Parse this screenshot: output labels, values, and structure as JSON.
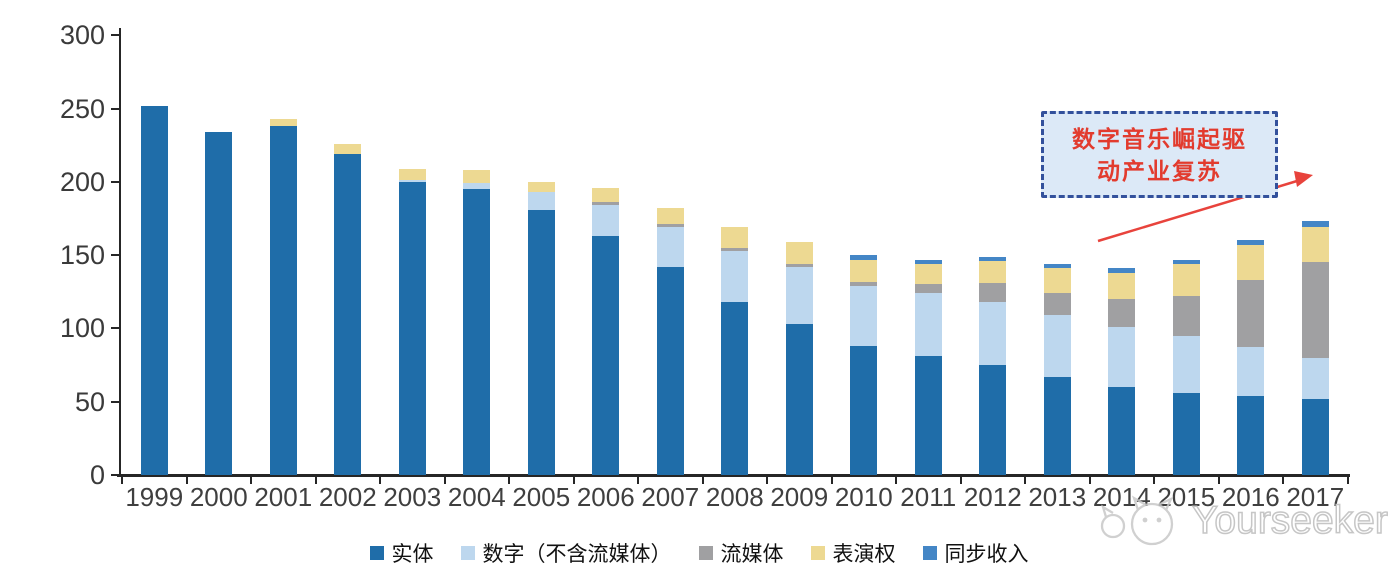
{
  "chart_data": {
    "type": "bar",
    "stacked": true,
    "title": "",
    "xlabel": "",
    "ylabel": "",
    "ylim": [
      0,
      300
    ],
    "yticks": [
      0,
      50,
      100,
      150,
      200,
      250,
      300
    ],
    "grid": false,
    "legend_position": "bottom",
    "categories": [
      "1999",
      "2000",
      "2001",
      "2002",
      "2003",
      "2004",
      "2005",
      "2006",
      "2007",
      "2008",
      "2009",
      "2010",
      "2011",
      "2012",
      "2013",
      "2014",
      "2015",
      "2016",
      "2017"
    ],
    "series": [
      {
        "name": "实体",
        "color": "#1F6DA9",
        "values": [
          252,
          234,
          238,
          219,
          200,
          195,
          181,
          163,
          142,
          118,
          103,
          88,
          81,
          75,
          67,
          60,
          56,
          54,
          52
        ]
      },
      {
        "name": "数字（不含流媒体）",
        "color": "#BDD7EE",
        "values": [
          0,
          0,
          0,
          0,
          1,
          4,
          12,
          21,
          27,
          35,
          39,
          41,
          43,
          43,
          42,
          41,
          39,
          33,
          28
        ]
      },
      {
        "name": "流媒体",
        "color": "#A0A0A2",
        "values": [
          0,
          0,
          0,
          0,
          0,
          0,
          0,
          2,
          2,
          2,
          2,
          3,
          6,
          13,
          15,
          19,
          27,
          46,
          65
        ]
      },
      {
        "name": "表演权",
        "color": "#EDD992",
        "values": [
          0,
          0,
          5,
          7,
          8,
          9,
          7,
          10,
          11,
          14,
          15,
          15,
          14,
          15,
          17,
          18,
          22,
          24,
          24
        ]
      },
      {
        "name": "同步收入",
        "color": "#4486C6",
        "values": [
          0,
          0,
          0,
          0,
          0,
          0,
          0,
          0,
          0,
          0,
          0,
          3,
          3,
          3,
          3,
          3,
          3,
          3,
          4
        ]
      }
    ]
  },
  "annotation": {
    "line1": "数字音乐崛起驱",
    "line2": "动产业复苏"
  },
  "watermark": {
    "text": "Yourseeker",
    "logo": "cat-logo"
  },
  "colors": {
    "axis": "#262626",
    "annotation_border": "#33519C",
    "annotation_fill": "#DCE9F7",
    "annotation_text": "#E23B2E",
    "arrow": "#E8433C",
    "watermark_outline": "#C6C6C6"
  }
}
